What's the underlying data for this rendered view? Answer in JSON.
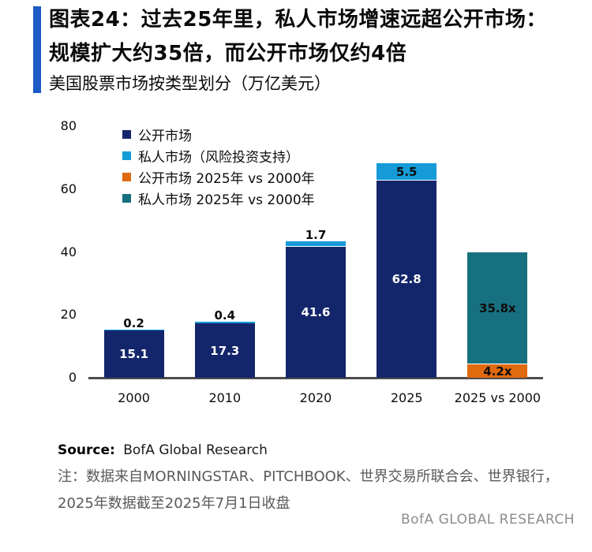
{
  "header": {
    "figure_title_line1": "图表24：过去25年里，私人市场增速远超公开市场：",
    "figure_title_line2": "规模扩大约35倍，而公开市场仅约4倍",
    "subtitle": "美国股票市场按类型划分（万亿美元）"
  },
  "chart_data": {
    "type": "bar",
    "stacked": true,
    "title": "美国股票市场按类型划分（万亿美元）",
    "xlabel": "",
    "ylabel": "",
    "ylim": [
      0,
      80
    ],
    "yticks": [
      0,
      20,
      40,
      60,
      80
    ],
    "grid": false,
    "legend_position": "upper-left-inside",
    "categories": [
      "2000",
      "2010",
      "2020",
      "2025",
      "2025 vs 2000"
    ],
    "series": [
      {
        "name": "公开市场",
        "color": "#14266b",
        "values": [
          15.1,
          17.3,
          41.6,
          62.8,
          null
        ],
        "labels": [
          "15.1",
          "17.3",
          "41.6",
          "62.8",
          null
        ]
      },
      {
        "name": "私人市场（风险投资支持）",
        "color": "#149bd8",
        "values": [
          0.2,
          0.4,
          1.7,
          5.5,
          null
        ],
        "labels": [
          "0.2",
          "0.4",
          "1.7",
          "5.5",
          null
        ]
      },
      {
        "name": "公开市场 2025年 vs 2000年",
        "color": "#e06a10",
        "values": [
          null,
          null,
          null,
          null,
          4.2
        ],
        "labels": [
          null,
          null,
          null,
          null,
          "4.2x"
        ]
      },
      {
        "name": "私人市场 2025年 vs 2000年",
        "color": "#17707f",
        "values": [
          null,
          null,
          null,
          null,
          35.8
        ],
        "labels": [
          null,
          null,
          null,
          null,
          "35.8x"
        ]
      }
    ]
  },
  "footer": {
    "source_label": "Source:",
    "source_text": "BofA Global Research",
    "note_line1": "注：数据来自MORNINGSTAR、PITCHBOOK、世界交易所联合会、世界银行，",
    "note_line2": "2025年数据截至2025年7月1日收盘",
    "brand": "BofA GLOBAL RESEARCH"
  },
  "colors": {
    "accent_bar": "#1c5ac6",
    "axis_line": "#4d4d4d",
    "bar_label_light": "#ffffff",
    "bar_label_dark": "#0d0d0d",
    "note_text": "#595959",
    "brand_text": "#8c8c8c"
  }
}
